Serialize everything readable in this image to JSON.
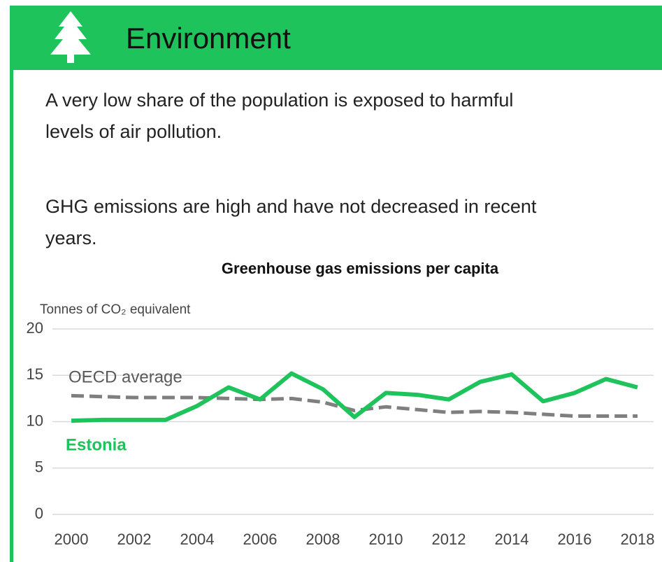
{
  "header": {
    "title": "Environment"
  },
  "paragraphs": [
    [
      "A very low share of the population is exposed to harmful",
      "levels of air pollution."
    ],
    [
      "GHG emissions are high and have not decreased in recent",
      "years."
    ]
  ],
  "chart_data": {
    "type": "line",
    "title": "Greenhouse gas emissions per capita",
    "y_label": "Tonnes of CO₂ equivalent",
    "x": [
      2000,
      2001,
      2002,
      2003,
      2004,
      2005,
      2006,
      2007,
      2008,
      2009,
      2010,
      2011,
      2012,
      2013,
      2014,
      2015,
      2016,
      2017,
      2018
    ],
    "series": [
      {
        "name": "OECD average",
        "color": "#7f7f7f",
        "dashed": true,
        "values": [
          12.8,
          12.7,
          12.6,
          12.6,
          12.6,
          12.5,
          12.4,
          12.5,
          12.1,
          11.2,
          11.6,
          11.3,
          11.0,
          11.1,
          11.0,
          10.8,
          10.6,
          10.6,
          10.6
        ]
      },
      {
        "name": "Estonia",
        "color": "#1ec35c",
        "dashed": false,
        "values": [
          10.1,
          10.2,
          10.2,
          10.2,
          11.7,
          13.7,
          12.4,
          15.2,
          13.5,
          10.5,
          13.1,
          12.9,
          12.4,
          14.3,
          15.1,
          12.2,
          13.1,
          14.6,
          13.7
        ]
      }
    ],
    "xlim": [
      2000,
      2018
    ],
    "xticks": [
      2000,
      2002,
      2004,
      2006,
      2008,
      2010,
      2012,
      2014,
      2016,
      2018
    ],
    "ylim": [
      0,
      20
    ],
    "yticks": [
      0,
      5,
      10,
      15,
      20
    ],
    "grid": true
  }
}
